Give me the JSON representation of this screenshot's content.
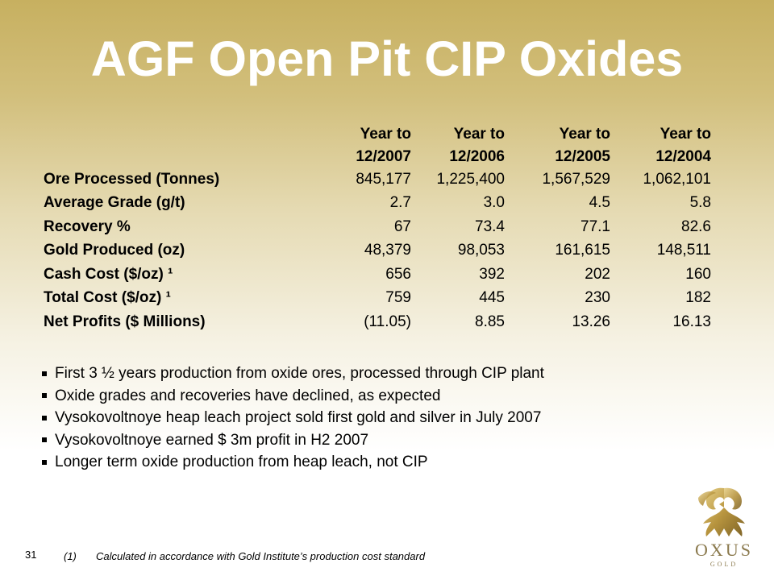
{
  "title": "AGF Open Pit CIP Oxides",
  "table": {
    "headers": [
      {
        "line1": "Year to",
        "line2": "12/2007"
      },
      {
        "line1": "Year to",
        "line2": "12/2006"
      },
      {
        "line1": "Year to",
        "line2": "12/2005"
      },
      {
        "line1": "Year to",
        "line2": "12/2004"
      }
    ],
    "rows": [
      {
        "label": "Ore Processed (Tonnes)",
        "values": [
          "845,177",
          "1,225,400",
          "1,567,529",
          "1,062,101"
        ]
      },
      {
        "label": "Average Grade (g/t)",
        "values": [
          "2.7",
          "3.0",
          "4.5",
          "5.8"
        ]
      },
      {
        "label": "Recovery %",
        "values": [
          "67",
          "73.4",
          "77.1",
          "82.6"
        ]
      },
      {
        "label": "Gold Produced (oz)",
        "values": [
          "48,379",
          "98,053",
          "161,615",
          "148,511"
        ]
      },
      {
        "label": "Cash Cost ($/oz) ¹",
        "values": [
          "656",
          "392",
          "202",
          "160"
        ]
      },
      {
        "label": "Total Cost ($/oz) ¹",
        "values": [
          "759",
          "445",
          "230",
          "182"
        ]
      },
      {
        "label": "Net Profits ($ Millions)",
        "values": [
          "(11.05)",
          "8.85",
          "13.26",
          "16.13"
        ]
      }
    ]
  },
  "bullets": [
    "First 3 ½  years production from oxide ores, processed through CIP plant",
    "Oxide grades and recoveries have declined, as expected",
    "Vysokovoltnoye heap leach project sold first gold and silver in July 2007",
    "Vysokovoltnoye earned $ 3m profit in H2 2007",
    "Longer term oxide production from heap leach, not CIP"
  ],
  "footer": {
    "page_number": "31",
    "footnote_number": "(1)",
    "footnote_text": "Calculated in accordance with Gold Institute’s production cost standard"
  },
  "logo": {
    "word": "OXUS",
    "sub": "GOLD",
    "color": "#8b7a4e"
  }
}
